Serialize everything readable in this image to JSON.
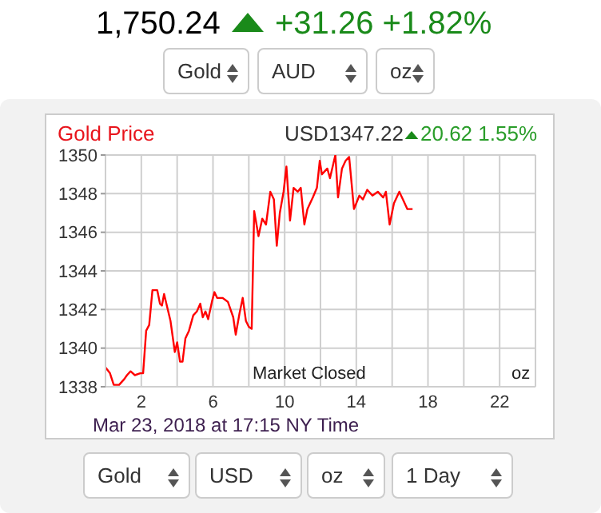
{
  "chart_data": {
    "type": "line",
    "title": "Gold Price",
    "annotations": [
      "1,750.24",
      "+31.26 +1.82%",
      "Gold",
      "AUD",
      "oz",
      "USD1347.22",
      "20.62 1.55%",
      "Market Closed",
      "oz",
      "Mar 23, 2018 at 17:15 NY Time",
      "Gold",
      "USD",
      "oz",
      "1 Day"
    ],
    "xlim": [
      0,
      24
    ],
    "xticks": [
      2,
      {
        "value": 4,
        "label": null
      },
      6,
      {
        "value": 8,
        "label": null
      },
      10,
      {
        "value": 12,
        "label": null
      },
      14,
      {
        "value": 16,
        "label": null
      },
      18,
      {
        "value": 20,
        "label": null
      },
      22
    ],
    "ylim": [
      1338,
      1350
    ],
    "yticks": [
      1338,
      1340,
      1342,
      1344,
      1346,
      1348,
      1350
    ],
    "grid": true,
    "marker": "none",
    "line_style": "solid",
    "series": [
      {
        "color": "#ff0000",
        "x": [
          0,
          0.25,
          0.46,
          0.76,
          1.05,
          1.2,
          1.4,
          1.64,
          1.94,
          2.1,
          2.27,
          2.44,
          2.62,
          2.89,
          3.04,
          3.15,
          3.27,
          3.63,
          3.87,
          4.0,
          4.16,
          4.3,
          4.46,
          4.66,
          4.9,
          5.1,
          5.29,
          5.43,
          5.58,
          5.73,
          5.94,
          6.08,
          6.23,
          6.53,
          6.83,
          7.13,
          7.27,
          7.48,
          7.66,
          7.84,
          8.0,
          8.16,
          8.3,
          8.54,
          8.75,
          8.96,
          9.2,
          9.4,
          9.56,
          9.73,
          9.94,
          10.1,
          10.3,
          10.5,
          10.73,
          10.9,
          11.1,
          11.27,
          11.57,
          11.8,
          11.96,
          12.08,
          12.38,
          12.53,
          12.83,
          12.98,
          13.2,
          13.4,
          13.6,
          13.87,
          14.17,
          14.37,
          14.61,
          14.9,
          15.2,
          15.5,
          15.65,
          15.86,
          16.1,
          16.4,
          16.6,
          16.85,
          17.14
        ],
        "values": [
          1339.0,
          1338.7,
          1338.1,
          1338.1,
          1338.4,
          1338.6,
          1338.8,
          1338.6,
          1338.7,
          1338.7,
          1340.9,
          1341.2,
          1343.0,
          1343.0,
          1342.3,
          1342.2,
          1342.8,
          1341.4,
          1339.8,
          1340.3,
          1339.3,
          1339.3,
          1340.5,
          1340.9,
          1341.7,
          1341.9,
          1342.3,
          1341.6,
          1341.9,
          1341.5,
          1342.4,
          1342.9,
          1342.6,
          1342.6,
          1342.4,
          1341.6,
          1340.7,
          1341.8,
          1342.6,
          1341.4,
          1341.1,
          1341.0,
          1347.1,
          1345.8,
          1346.7,
          1346.4,
          1348.1,
          1347.7,
          1345.3,
          1347.0,
          1348.1,
          1349.4,
          1346.6,
          1348.3,
          1348.1,
          1348.3,
          1346.4,
          1347.2,
          1347.8,
          1348.3,
          1349.7,
          1349.0,
          1349.3,
          1348.8,
          1350.0,
          1347.8,
          1349.3,
          1349.7,
          1349.9,
          1347.2,
          1347.9,
          1347.7,
          1348.2,
          1347.9,
          1348.1,
          1347.8,
          1348.1,
          1346.4,
          1347.5,
          1348.1,
          1347.7,
          1347.2,
          1347.2
        ]
      }
    ]
  }
}
